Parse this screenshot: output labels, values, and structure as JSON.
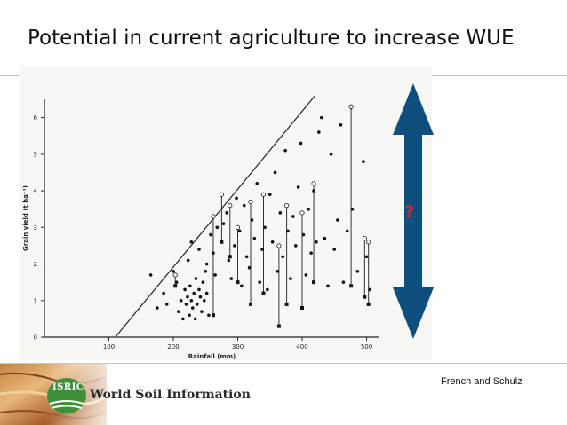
{
  "slide": {
    "title": "Potential in current agriculture to increase WUE",
    "credit": "French and Schulz",
    "question_mark": "?",
    "arrow_color": "#0f4f80",
    "question_color": "#d8281f"
  },
  "footer": {
    "logo_text": "ISRIC",
    "org_name": "World Soil Information",
    "logo_color": "#3f8f3a"
  },
  "chart_data": {
    "type": "scatter",
    "xlabel": "Rainfall (mm)",
    "ylabel": "Grain yield (t ha⁻¹)",
    "xlim": [
      0,
      520
    ],
    "ylim": [
      0,
      6.5
    ],
    "xticks": [
      100,
      200,
      300,
      400,
      500
    ],
    "yticks": [
      0,
      1,
      2,
      3,
      4,
      5,
      6
    ],
    "boundary_line": {
      "x": [
        110,
        420
      ],
      "y": [
        0,
        6.6
      ]
    },
    "points": [
      {
        "x": 165,
        "y": 1.7
      },
      {
        "x": 175,
        "y": 0.8
      },
      {
        "x": 185,
        "y": 1.2
      },
      {
        "x": 190,
        "y": 0.9
      },
      {
        "x": 200,
        "y": 1.8
      },
      {
        "x": 205,
        "y": 1.5
      },
      {
        "x": 208,
        "y": 0.7
      },
      {
        "x": 212,
        "y": 1.0
      },
      {
        "x": 215,
        "y": 0.5
      },
      {
        "x": 218,
        "y": 1.3
      },
      {
        "x": 220,
        "y": 0.9
      },
      {
        "x": 222,
        "y": 1.1
      },
      {
        "x": 225,
        "y": 0.6
      },
      {
        "x": 226,
        "y": 1.4
      },
      {
        "x": 228,
        "y": 1.0
      },
      {
        "x": 230,
        "y": 0.8
      },
      {
        "x": 232,
        "y": 1.2
      },
      {
        "x": 234,
        "y": 0.5
      },
      {
        "x": 235,
        "y": 1.6
      },
      {
        "x": 237,
        "y": 0.9
      },
      {
        "x": 240,
        "y": 1.3
      },
      {
        "x": 242,
        "y": 1.1
      },
      {
        "x": 244,
        "y": 0.7
      },
      {
        "x": 246,
        "y": 1.5
      },
      {
        "x": 248,
        "y": 1.0
      },
      {
        "x": 250,
        "y": 1.8
      },
      {
        "x": 252,
        "y": 1.2
      },
      {
        "x": 255,
        "y": 0.6
      },
      {
        "x": 223,
        "y": 2.1
      },
      {
        "x": 228,
        "y": 2.6
      },
      {
        "x": 240,
        "y": 2.4
      },
      {
        "x": 252,
        "y": 2.0
      },
      {
        "x": 258,
        "y": 2.8
      },
      {
        "x": 262,
        "y": 2.3
      },
      {
        "x": 265,
        "y": 1.7
      },
      {
        "x": 268,
        "y": 3.0
      },
      {
        "x": 278,
        "y": 3.1
      },
      {
        "x": 283,
        "y": 3.4
      },
      {
        "x": 286,
        "y": 2.1
      },
      {
        "x": 290,
        "y": 1.6
      },
      {
        "x": 295,
        "y": 2.5
      },
      {
        "x": 298,
        "y": 3.8
      },
      {
        "x": 303,
        "y": 2.9
      },
      {
        "x": 306,
        "y": 1.4
      },
      {
        "x": 310,
        "y": 3.6
      },
      {
        "x": 314,
        "y": 2.2
      },
      {
        "x": 318,
        "y": 1.9
      },
      {
        "x": 322,
        "y": 3.2
      },
      {
        "x": 326,
        "y": 2.7
      },
      {
        "x": 330,
        "y": 4.2
      },
      {
        "x": 334,
        "y": 1.5
      },
      {
        "x": 338,
        "y": 2.4
      },
      {
        "x": 342,
        "y": 3.0
      },
      {
        "x": 346,
        "y": 1.3
      },
      {
        "x": 350,
        "y": 3.9
      },
      {
        "x": 354,
        "y": 2.6
      },
      {
        "x": 358,
        "y": 4.5
      },
      {
        "x": 362,
        "y": 1.8
      },
      {
        "x": 366,
        "y": 3.4
      },
      {
        "x": 370,
        "y": 2.2
      },
      {
        "x": 374,
        "y": 5.1
      },
      {
        "x": 378,
        "y": 2.9
      },
      {
        "x": 382,
        "y": 1.6
      },
      {
        "x": 386,
        "y": 3.3
      },
      {
        "x": 390,
        "y": 2.5
      },
      {
        "x": 394,
        "y": 4.1
      },
      {
        "x": 398,
        "y": 5.3
      },
      {
        "x": 402,
        "y": 2.8
      },
      {
        "x": 406,
        "y": 1.7
      },
      {
        "x": 410,
        "y": 3.5
      },
      {
        "x": 414,
        "y": 2.3
      },
      {
        "x": 418,
        "y": 4.0
      },
      {
        "x": 422,
        "y": 2.6
      },
      {
        "x": 426,
        "y": 5.6
      },
      {
        "x": 430,
        "y": 6.0
      },
      {
        "x": 435,
        "y": 2.7
      },
      {
        "x": 440,
        "y": 1.4
      },
      {
        "x": 445,
        "y": 5.0
      },
      {
        "x": 450,
        "y": 2.4
      },
      {
        "x": 455,
        "y": 3.2
      },
      {
        "x": 460,
        "y": 5.8
      },
      {
        "x": 464,
        "y": 1.5
      },
      {
        "x": 470,
        "y": 2.9
      },
      {
        "x": 478,
        "y": 3.5
      },
      {
        "x": 486,
        "y": 1.8
      },
      {
        "x": 495,
        "y": 4.8
      },
      {
        "x": 500,
        "y": 2.2
      },
      {
        "x": 505,
        "y": 1.3
      }
    ],
    "ranges": [
      {
        "x": 203,
        "y": [
          1.4,
          1.7
        ]
      },
      {
        "x": 262,
        "y": [
          0.6,
          3.3
        ]
      },
      {
        "x": 275,
        "y": [
          2.6,
          3.9
        ]
      },
      {
        "x": 288,
        "y": [
          2.2,
          3.6
        ]
      },
      {
        "x": 300,
        "y": [
          1.5,
          3.0
        ]
      },
      {
        "x": 320,
        "y": [
          0.9,
          3.7
        ]
      },
      {
        "x": 340,
        "y": [
          1.2,
          3.9
        ]
      },
      {
        "x": 364,
        "y": [
          0.3,
          2.5
        ]
      },
      {
        "x": 376,
        "y": [
          0.9,
          3.6
        ]
      },
      {
        "x": 400,
        "y": [
          0.8,
          3.4
        ]
      },
      {
        "x": 418,
        "y": [
          1.5,
          4.2
        ]
      },
      {
        "x": 476,
        "y": [
          1.4,
          6.3
        ]
      },
      {
        "x": 497,
        "y": [
          1.1,
          2.7
        ]
      },
      {
        "x": 503,
        "y": [
          0.9,
          2.6
        ]
      }
    ]
  }
}
